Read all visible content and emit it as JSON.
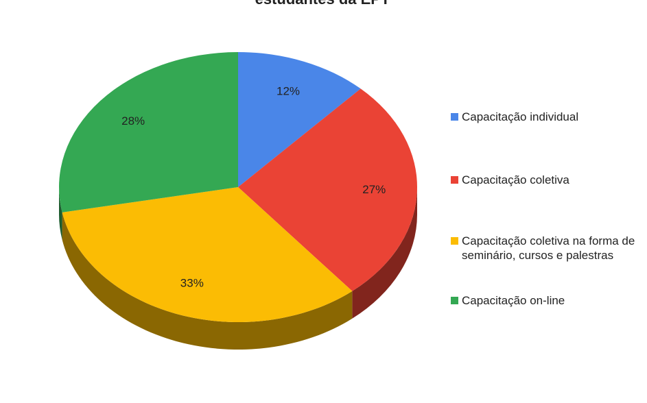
{
  "chart_data": {
    "type": "pie",
    "title": "estudantes da EPT",
    "categories": [
      "Capacitação individual",
      "Capacitação coletiva",
      "Capacitação coletiva na forma de seminário, cursos e palestras",
      "Capacitação on-line"
    ],
    "values": [
      12,
      27,
      33,
      28
    ],
    "value_labels": [
      "12%",
      "27%",
      "33%",
      "28%"
    ],
    "colors": [
      "#4a86e8",
      "#ea4335",
      "#fbbc04",
      "#34a853"
    ],
    "legend": "right"
  }
}
